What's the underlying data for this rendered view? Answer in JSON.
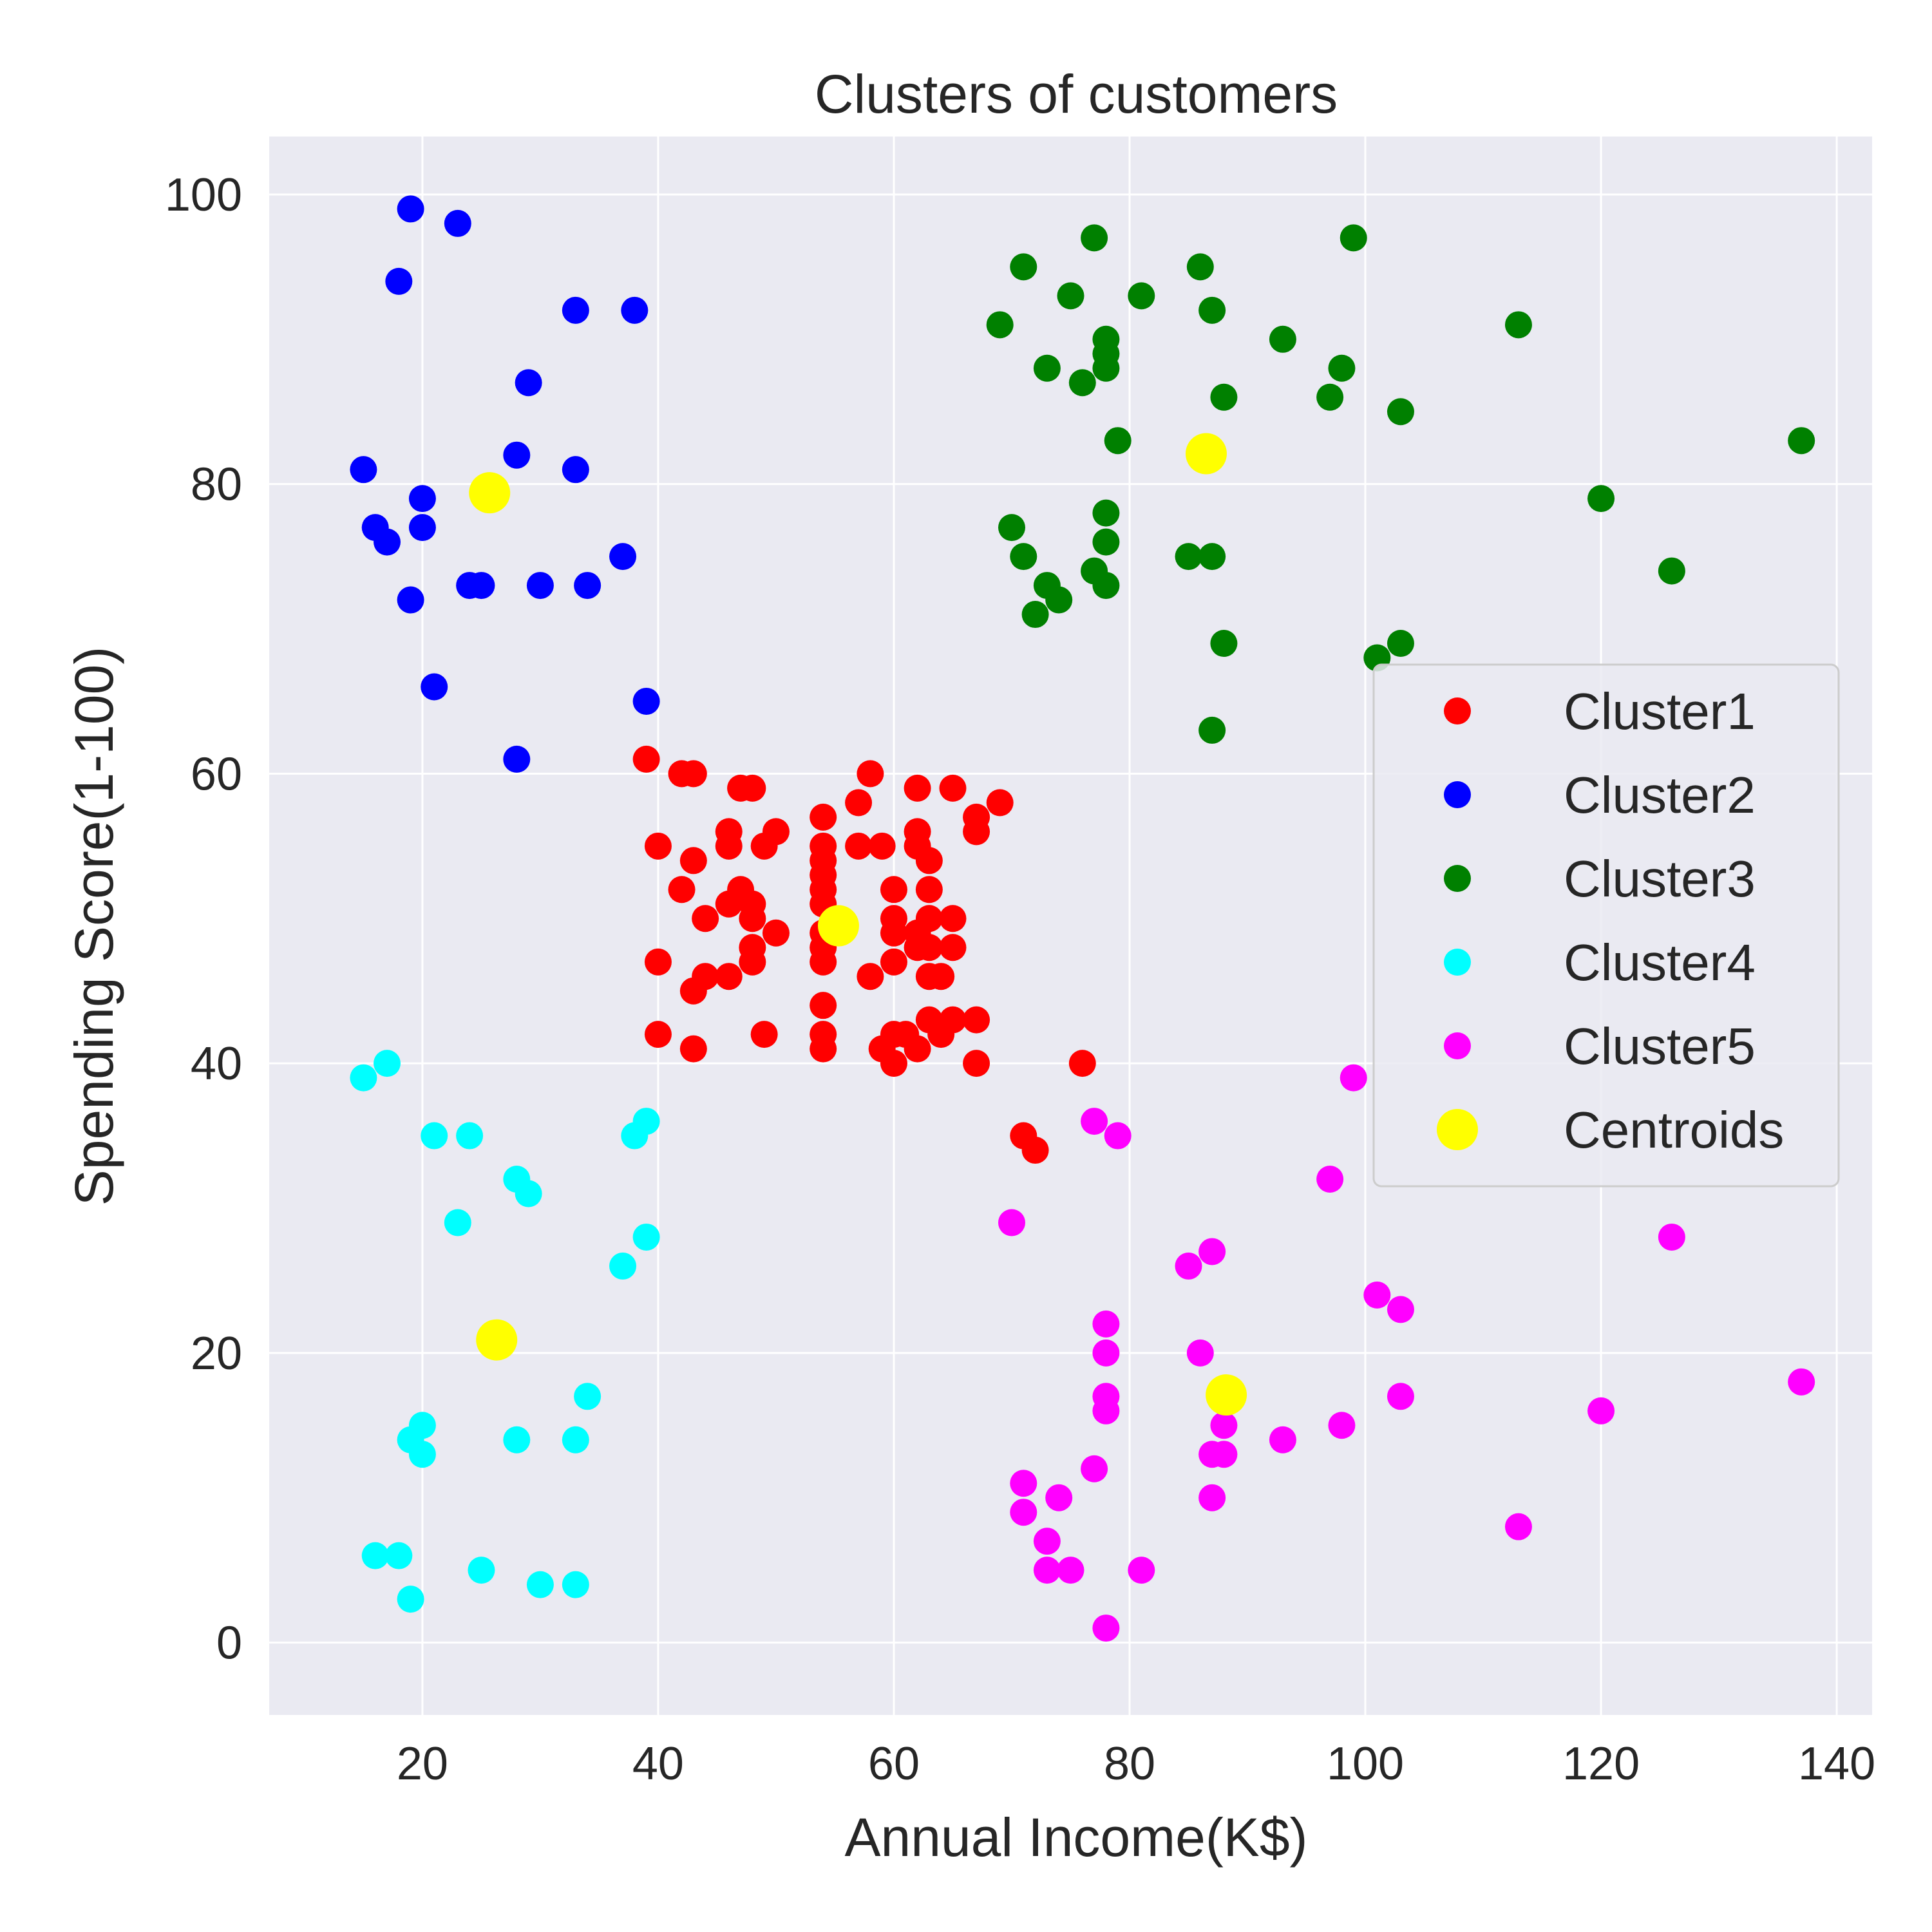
{
  "colors": {
    "plot_background": "#eaeaf2",
    "grid": "#ffffff",
    "text": "#262626",
    "legend_background": "#eaeaf2",
    "legend_border": "#cccccc"
  },
  "chart_data": {
    "type": "scatter",
    "title": "Clusters of customers",
    "xlabel": "Annual Income(K$)",
    "ylabel": "Spending Score(1-100)",
    "xlim": [
      7,
      143
    ],
    "ylim": [
      -5,
      104
    ],
    "xticks": [
      20,
      40,
      60,
      80,
      100,
      120,
      140
    ],
    "yticks": [
      0,
      20,
      40,
      60,
      80,
      100
    ],
    "grid": true,
    "legend_position": "right",
    "series": [
      {
        "name": "Cluster1",
        "color": "#ff0000",
        "points": [
          [
            39,
            61
          ],
          [
            42,
            60
          ],
          [
            43,
            60
          ],
          [
            47,
            59
          ],
          [
            48,
            59
          ],
          [
            58,
            60
          ],
          [
            57,
            58
          ],
          [
            62,
            59
          ],
          [
            65,
            59
          ],
          [
            69,
            58
          ],
          [
            67,
            57
          ],
          [
            67,
            56
          ],
          [
            54,
            57
          ],
          [
            46,
            56
          ],
          [
            50,
            56
          ],
          [
            62,
            56
          ],
          [
            62,
            55
          ],
          [
            40,
            55
          ],
          [
            46,
            55
          ],
          [
            49,
            55
          ],
          [
            54,
            55
          ],
          [
            57,
            55
          ],
          [
            59,
            55
          ],
          [
            43,
            54
          ],
          [
            54,
            54
          ],
          [
            63,
            54
          ],
          [
            54,
            53
          ],
          [
            42,
            52
          ],
          [
            54,
            52
          ],
          [
            60,
            52
          ],
          [
            63,
            52
          ],
          [
            47,
            52
          ],
          [
            46,
            51
          ],
          [
            48,
            51
          ],
          [
            54,
            51
          ],
          [
            44,
            50
          ],
          [
            48,
            50
          ],
          [
            60,
            50
          ],
          [
            63,
            50
          ],
          [
            65,
            50
          ],
          [
            50,
            49
          ],
          [
            54,
            49
          ],
          [
            60,
            49
          ],
          [
            62,
            49
          ],
          [
            48,
            48
          ],
          [
            54,
            48
          ],
          [
            62,
            48
          ],
          [
            63,
            48
          ],
          [
            65,
            48
          ],
          [
            40,
            47
          ],
          [
            48,
            47
          ],
          [
            54,
            47
          ],
          [
            60,
            47
          ],
          [
            44,
            46
          ],
          [
            46,
            46
          ],
          [
            58,
            46
          ],
          [
            63,
            46
          ],
          [
            64,
            46
          ],
          [
            43,
            45
          ],
          [
            54,
            44
          ],
          [
            63,
            43
          ],
          [
            65,
            43
          ],
          [
            67,
            43
          ],
          [
            40,
            42
          ],
          [
            49,
            42
          ],
          [
            54,
            42
          ],
          [
            60,
            42
          ],
          [
            61,
            42
          ],
          [
            64,
            42
          ],
          [
            43,
            41
          ],
          [
            54,
            41
          ],
          [
            59,
            41
          ],
          [
            62,
            41
          ],
          [
            60,
            40
          ],
          [
            67,
            40
          ],
          [
            76,
            40
          ],
          [
            71,
            35
          ],
          [
            72,
            34
          ]
        ]
      },
      {
        "name": "Cluster2",
        "color": "#0000ff",
        "points": [
          [
            19,
            99
          ],
          [
            23,
            98
          ],
          [
            18,
            94
          ],
          [
            33,
            92
          ],
          [
            38,
            92
          ],
          [
            29,
            87
          ],
          [
            28,
            82
          ],
          [
            15,
            81
          ],
          [
            33,
            81
          ],
          [
            20,
            79
          ],
          [
            16,
            77
          ],
          [
            20,
            77
          ],
          [
            17,
            76
          ],
          [
            37,
            75
          ],
          [
            24,
            73
          ],
          [
            25,
            73
          ],
          [
            30,
            73
          ],
          [
            34,
            73
          ],
          [
            19,
            72
          ],
          [
            21,
            66
          ],
          [
            39,
            65
          ],
          [
            28,
            61
          ]
        ]
      },
      {
        "name": "Cluster3",
        "color": "#008000",
        "points": [
          [
            77,
            97
          ],
          [
            99,
            97
          ],
          [
            71,
            95
          ],
          [
            86,
            95
          ],
          [
            75,
            93
          ],
          [
            81,
            93
          ],
          [
            87,
            92
          ],
          [
            69,
            91
          ],
          [
            113,
            91
          ],
          [
            78,
            90
          ],
          [
            93,
            90
          ],
          [
            78,
            89
          ],
          [
            73,
            88
          ],
          [
            78,
            88
          ],
          [
            98,
            88
          ],
          [
            76,
            87
          ],
          [
            88,
            86
          ],
          [
            97,
            86
          ],
          [
            103,
            85
          ],
          [
            79,
            83
          ],
          [
            137,
            83
          ],
          [
            120,
            79
          ],
          [
            78,
            78
          ],
          [
            70,
            77
          ],
          [
            78,
            76
          ],
          [
            71,
            75
          ],
          [
            85,
            75
          ],
          [
            87,
            75
          ],
          [
            77,
            74
          ],
          [
            126,
            74
          ],
          [
            73,
            73
          ],
          [
            78,
            73
          ],
          [
            74,
            72
          ],
          [
            72,
            71
          ],
          [
            88,
            69
          ],
          [
            103,
            69
          ],
          [
            101,
            68
          ],
          [
            87,
            63
          ]
        ]
      },
      {
        "name": "Cluster4",
        "color": "#00ffff",
        "points": [
          [
            17,
            40
          ],
          [
            15,
            39
          ],
          [
            39,
            36
          ],
          [
            21,
            35
          ],
          [
            24,
            35
          ],
          [
            38,
            35
          ],
          [
            28,
            32
          ],
          [
            29,
            31
          ],
          [
            23,
            29
          ],
          [
            39,
            28
          ],
          [
            37,
            26
          ],
          [
            34,
            17
          ],
          [
            20,
            15
          ],
          [
            19,
            14
          ],
          [
            28,
            14
          ],
          [
            33,
            14
          ],
          [
            20,
            13
          ],
          [
            16,
            6
          ],
          [
            18,
            6
          ],
          [
            25,
            5
          ],
          [
            30,
            4
          ],
          [
            33,
            4
          ],
          [
            19,
            3
          ]
        ]
      },
      {
        "name": "Cluster5",
        "color": "#ff00ff",
        "points": [
          [
            99,
            39
          ],
          [
            77,
            36
          ],
          [
            79,
            35
          ],
          [
            97,
            32
          ],
          [
            70,
            29
          ],
          [
            126,
            28
          ],
          [
            87,
            27
          ],
          [
            85,
            26
          ],
          [
            101,
            24
          ],
          [
            103,
            23
          ],
          [
            78,
            22
          ],
          [
            78,
            20
          ],
          [
            86,
            20
          ],
          [
            137,
            18
          ],
          [
            78,
            17
          ],
          [
            103,
            17
          ],
          [
            78,
            16
          ],
          [
            120,
            16
          ],
          [
            88,
            15
          ],
          [
            98,
            15
          ],
          [
            93,
            14
          ],
          [
            87,
            13
          ],
          [
            88,
            13
          ],
          [
            77,
            12
          ],
          [
            71,
            11
          ],
          [
            74,
            10
          ],
          [
            87,
            10
          ],
          [
            71,
            9
          ],
          [
            113,
            8
          ],
          [
            73,
            7
          ],
          [
            73,
            5
          ],
          [
            75,
            5
          ],
          [
            81,
            5
          ],
          [
            78,
            1
          ]
        ]
      },
      {
        "name": "Centroids",
        "color": "#ffff00",
        "large": true,
        "points": [
          [
            55.3,
            49.5
          ],
          [
            25.7,
            79.4
          ],
          [
            86.5,
            82.1
          ],
          [
            26.3,
            20.9
          ],
          [
            88.2,
            17.1
          ]
        ]
      }
    ]
  }
}
